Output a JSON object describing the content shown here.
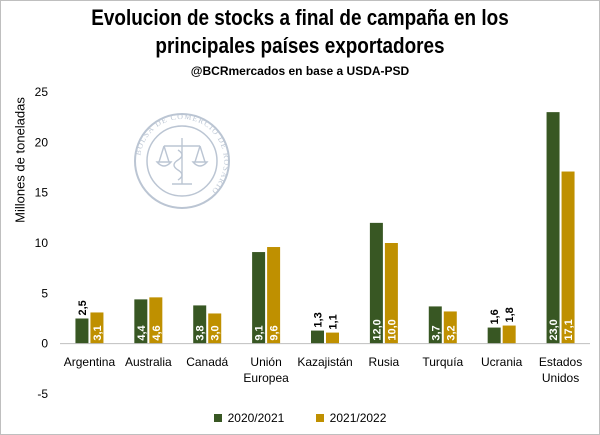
{
  "chart_data": {
    "type": "bar",
    "title_lines": [
      "Evolucion de stocks a final de campaña en los",
      "principales países exportadores"
    ],
    "subtitle": "@BCRmercados  en base a USDA-PSD",
    "ylabel": "Millones de toneladas",
    "xlabel": "",
    "ylim": [
      -5,
      25
    ],
    "yticks": [
      -5,
      0,
      5,
      10,
      15,
      20,
      25
    ],
    "grid": false,
    "legend_position": "bottom",
    "categories": [
      [
        "Argentina"
      ],
      [
        "Australia"
      ],
      [
        "Canadá"
      ],
      [
        "Unión",
        "Europea"
      ],
      [
        "Kazajistán"
      ],
      [
        "Rusia"
      ],
      [
        "Turquía"
      ],
      [
        "Ucrania"
      ],
      [
        "Estados",
        "Unidos"
      ]
    ],
    "series": [
      {
        "name": "2020/2021",
        "color": "#385723",
        "values": [
          2.5,
          4.4,
          3.8,
          9.1,
          1.3,
          12.0,
          3.7,
          1.6,
          23.0
        ],
        "labels": [
          "2,5",
          "4,4",
          "3,8",
          "9,1",
          "1,3",
          "12,0",
          "3,7",
          "1,6",
          "23,0"
        ]
      },
      {
        "name": "2021/2022",
        "color": "#BF9000",
        "values": [
          3.1,
          4.6,
          3.0,
          9.6,
          1.1,
          10.0,
          3.2,
          1.8,
          17.1
        ],
        "labels": [
          "3,1",
          "4,6",
          "3,0",
          "9,6",
          "1,1",
          "10,0",
          "3,2",
          "1,8",
          "17,1"
        ]
      }
    ],
    "watermark": {
      "text": "BOLSA DE COMERCIO DE ROSARIO",
      "icon": "scales-of-justice-icon"
    }
  }
}
